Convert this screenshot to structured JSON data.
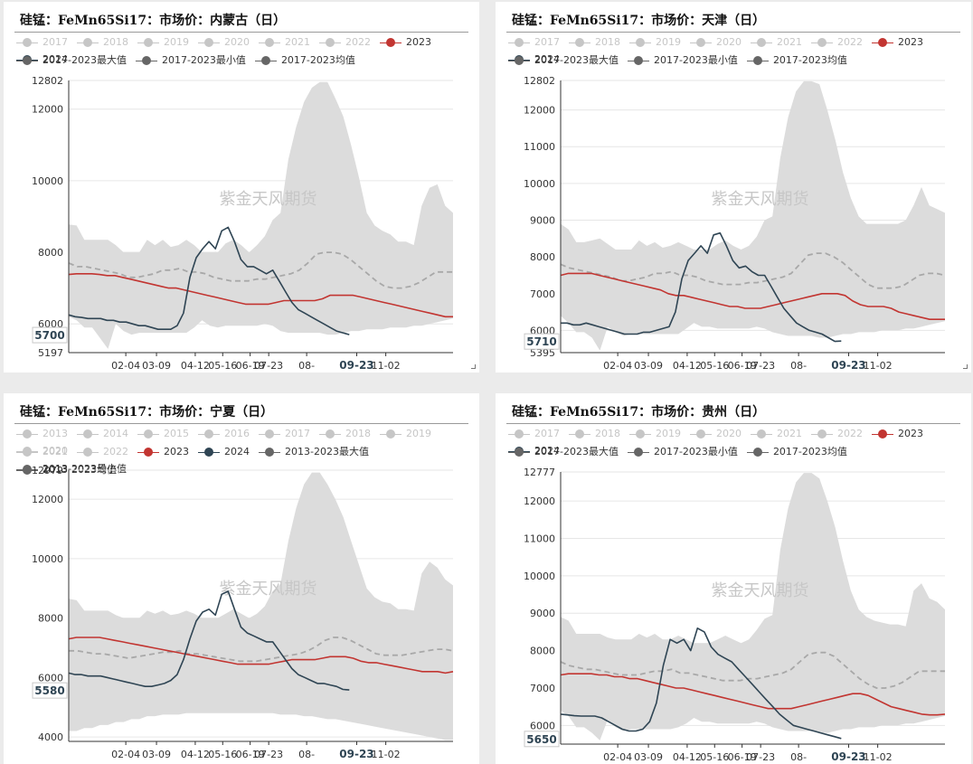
{
  "watermark": "紫金天风期货",
  "x_ticks": [
    "02-04",
    "03-09",
    "04-12",
    "05-16",
    "06-19",
    "07-23",
    "08-",
    "09-23",
    "11-02"
  ],
  "colors": {
    "c2023": "#c23531",
    "c2024": "#2f4554",
    "band": "#dcdcdc",
    "avg": "#a8a8a8",
    "legend_off": "#c6c6c6",
    "legend_on": "#666666"
  },
  "chart_data": [
    {
      "type": "line",
      "title": "硅锰：FeMn65Si17：市场价：内蒙古（日）",
      "legend": [
        [
          "2017",
          "2018",
          "2019",
          "2020",
          "2021",
          "2022",
          "2023",
          "2024"
        ],
        [
          "2017-2023最大值",
          "2017-2023最小值",
          "2017-2023均值"
        ]
      ],
      "y_ticks": [
        5197,
        6000,
        8000,
        10000,
        12000,
        12802
      ],
      "ylim": [
        5197,
        12802
      ],
      "current_label": "5700",
      "x_ticks": [
        "02-04",
        "03-09",
        "04-12",
        "05-16",
        "06-19",
        "07-23",
        "08-",
        "09-23",
        "11-02"
      ],
      "x_days": [
        0,
        35,
        73,
        121,
        155,
        189,
        212,
        259,
        321,
        357
      ],
      "band_max": [
        8780,
        8750,
        8350,
        8350,
        8350,
        8350,
        8200,
        8000,
        8000,
        8000,
        8350,
        8200,
        8350,
        8150,
        8200,
        8350,
        8200,
        8000,
        8000,
        8000,
        8250,
        8350,
        8200,
        8000,
        8200,
        8450,
        8900,
        9100,
        10600,
        11500,
        12200,
        12600,
        12760,
        12760,
        12300,
        11800,
        11000,
        10100,
        9100,
        8750,
        8600,
        8500,
        8300,
        8300,
        8200,
        9300,
        9800,
        9900,
        9300,
        9100
      ],
      "band_min": [
        6200,
        6100,
        5900,
        5900,
        5600,
        5300,
        6000,
        5800,
        5700,
        5750,
        5750,
        5750,
        5750,
        5750,
        5750,
        5750,
        5900,
        6100,
        5950,
        5900,
        5950,
        5950,
        5950,
        5950,
        5950,
        6000,
        5950,
        5800,
        5750,
        5750,
        5750,
        5750,
        5750,
        5700,
        5700,
        5750,
        5800,
        5800,
        5850,
        5850,
        5850,
        5900,
        5900,
        5900,
        5950,
        5950,
        6000,
        6050,
        6100,
        6150
      ],
      "avg": [
        7700,
        7600,
        7600,
        7550,
        7500,
        7450,
        7400,
        7300,
        7300,
        7350,
        7400,
        7500,
        7500,
        7550,
        7450,
        7450,
        7400,
        7300,
        7250,
        7200,
        7200,
        7200,
        7250,
        7250,
        7300,
        7350,
        7400,
        7500,
        7700,
        7950,
        8000,
        8000,
        7950,
        7800,
        7600,
        7400,
        7200,
        7050,
        7000,
        7000,
        7050,
        7150,
        7300,
        7450,
        7450,
        7450
      ],
      "series_2023": [
        7380,
        7400,
        7400,
        7400,
        7380,
        7350,
        7350,
        7300,
        7250,
        7200,
        7150,
        7100,
        7050,
        7000,
        7000,
        6950,
        6900,
        6850,
        6800,
        6750,
        6700,
        6650,
        6600,
        6550,
        6550,
        6550,
        6550,
        6600,
        6650,
        6650,
        6650,
        6650,
        6650,
        6700,
        6800,
        6800,
        6800,
        6800,
        6750,
        6700,
        6650,
        6600,
        6550,
        6500,
        6450,
        6400,
        6350,
        6300,
        6250,
        6200,
        6200
      ],
      "series_2024": [
        6250,
        6200,
        6180,
        6150,
        6150,
        6150,
        6100,
        6100,
        6050,
        6050,
        6000,
        5950,
        5950,
        5900,
        5850,
        5850,
        5850,
        5950,
        6300,
        7300,
        7850,
        8100,
        8300,
        8100,
        8600,
        8700,
        8300,
        7800,
        7600,
        7600,
        7500,
        7400,
        7500,
        7200,
        6900,
        6600,
        6400,
        6300,
        6200,
        6100,
        6000,
        5900,
        5800,
        5750,
        5700
      ]
    },
    {
      "type": "line",
      "title": "硅锰：FeMn65Si17：市场价：天津（日）",
      "legend": [
        [
          "2017",
          "2018",
          "2019",
          "2020",
          "2021",
          "2022",
          "2023",
          "2024"
        ],
        [
          "2017-2023最大值",
          "2017-2023最小值",
          "2017-2023均值"
        ]
      ],
      "y_ticks": [
        5395,
        6000,
        7000,
        8000,
        9000,
        10000,
        11000,
        12000,
        12802
      ],
      "ylim": [
        5395,
        12802
      ],
      "current_label": "5710",
      "x_ticks": [
        "02-04",
        "03-09",
        "04-12",
        "05-16",
        "06-19",
        "07-23",
        "08-",
        "09-23",
        "11-02"
      ],
      "x_days": [
        0,
        35,
        73,
        121,
        155,
        189,
        212,
        259,
        321,
        357
      ],
      "band_max": [
        8900,
        8750,
        8400,
        8400,
        8450,
        8500,
        8350,
        8200,
        8200,
        8200,
        8450,
        8300,
        8400,
        8250,
        8300,
        8400,
        8300,
        8200,
        8200,
        8200,
        8350,
        8450,
        8300,
        8200,
        8300,
        8550,
        9000,
        9100,
        10700,
        11800,
        12500,
        12780,
        12780,
        12700,
        12000,
        11200,
        10300,
        9600,
        9100,
        8900,
        8900,
        8900,
        8900,
        8900,
        9000,
        9400,
        9900,
        9400,
        9300,
        9200
      ],
      "band_min": [
        6400,
        6200,
        5950,
        5950,
        5800,
        5450,
        6100,
        5950,
        5850,
        5900,
        5900,
        5900,
        5900,
        5900,
        5900,
        5900,
        6050,
        6200,
        6100,
        6100,
        6050,
        6050,
        6050,
        6050,
        6050,
        6100,
        6050,
        5950,
        5900,
        5850,
        5850,
        5850,
        5850,
        5800,
        5800,
        5850,
        5900,
        5900,
        5950,
        5950,
        5950,
        6000,
        6000,
        6000,
        6050,
        6050,
        6100,
        6150,
        6200,
        6250
      ],
      "avg": [
        7800,
        7700,
        7650,
        7600,
        7550,
        7500,
        7450,
        7350,
        7350,
        7400,
        7450,
        7550,
        7550,
        7600,
        7500,
        7500,
        7450,
        7350,
        7300,
        7250,
        7250,
        7250,
        7300,
        7300,
        7350,
        7400,
        7450,
        7550,
        7800,
        8050,
        8100,
        8100,
        8000,
        7850,
        7650,
        7450,
        7250,
        7150,
        7150,
        7150,
        7200,
        7350,
        7500,
        7550,
        7550,
        7500
      ],
      "series_2023": [
        7500,
        7550,
        7550,
        7550,
        7550,
        7500,
        7450,
        7400,
        7350,
        7300,
        7250,
        7200,
        7150,
        7100,
        7000,
        6950,
        6950,
        6900,
        6850,
        6800,
        6750,
        6700,
        6650,
        6650,
        6600,
        6600,
        6600,
        6650,
        6700,
        6750,
        6800,
        6850,
        6900,
        6950,
        7000,
        7000,
        7000,
        6950,
        6800,
        6700,
        6650,
        6650,
        6650,
        6600,
        6500,
        6450,
        6400,
        6350,
        6300,
        6300,
        6300
      ],
      "series_2024": [
        6200,
        6200,
        6150,
        6150,
        6200,
        6150,
        6100,
        6050,
        6000,
        5950,
        5900,
        5900,
        5900,
        5950,
        5950,
        6000,
        6050,
        6100,
        6500,
        7400,
        7900,
        8100,
        8300,
        8100,
        8600,
        8650,
        8300,
        7900,
        7700,
        7750,
        7600,
        7500,
        7500,
        7200,
        6900,
        6600,
        6400,
        6200,
        6100,
        6000,
        5950,
        5900,
        5800,
        5700,
        5710
      ]
    },
    {
      "type": "line",
      "title": "硅锰：FeMn65Si17：市场价：宁夏（日）",
      "legend": [
        [
          "2013",
          "2014",
          "2015",
          "2016",
          "2017",
          "2018",
          "2019",
          "2020"
        ],
        [
          "2021",
          "2022",
          "2023",
          "2024",
          "2013-2023最大值",
          "2013-2023最小值"
        ],
        [
          "2013-2023均值"
        ]
      ],
      "y_ticks": [
        4000,
        6000,
        8000,
        10000,
        12000,
        12979
      ],
      "ylim": [
        3850,
        12979
      ],
      "current_label": "5580",
      "x_ticks": [
        "02-04",
        "03-09",
        "04-12",
        "05-16",
        "06-19",
        "07-23",
        "08-",
        "09-23",
        "11-02"
      ],
      "x_days": [
        0,
        35,
        73,
        121,
        155,
        189,
        212,
        259,
        321,
        357
      ],
      "band_max": [
        8650,
        8600,
        8250,
        8250,
        8250,
        8250,
        8100,
        8000,
        8000,
        8000,
        8250,
        8150,
        8250,
        8100,
        8150,
        8250,
        8150,
        8000,
        8000,
        8000,
        8150,
        8300,
        8150,
        8000,
        8150,
        8400,
        8900,
        9150,
        10600,
        11700,
        12500,
        12900,
        12900,
        12500,
        12000,
        11400,
        10600,
        9800,
        9000,
        8700,
        8550,
        8500,
        8300,
        8300,
        8250,
        9500,
        9900,
        9700,
        9300,
        9100
      ],
      "band_min": [
        4200,
        4200,
        4300,
        4300,
        4400,
        4400,
        4500,
        4500,
        4600,
        4600,
        4700,
        4700,
        4750,
        4750,
        4750,
        4800,
        4800,
        4800,
        4800,
        4800,
        4800,
        4800,
        4800,
        4800,
        4800,
        4800,
        4800,
        4750,
        4750,
        4750,
        4700,
        4700,
        4650,
        4600,
        4600,
        4550,
        4500,
        4450,
        4400,
        4350,
        4300,
        4250,
        4200,
        4150,
        4100,
        4050,
        4000,
        3950,
        3900,
        3900
      ],
      "avg": [
        6900,
        6900,
        6850,
        6800,
        6800,
        6750,
        6700,
        6650,
        6700,
        6750,
        6800,
        6850,
        6850,
        6900,
        6800,
        6800,
        6750,
        6700,
        6650,
        6600,
        6550,
        6550,
        6550,
        6600,
        6650,
        6700,
        6750,
        6800,
        6900,
        7050,
        7250,
        7350,
        7350,
        7250,
        7100,
        6950,
        6800,
        6750,
        6750,
        6750,
        6800,
        6850,
        6900,
        6950,
        6950,
        6900
      ],
      "series_2023": [
        7300,
        7350,
        7350,
        7350,
        7350,
        7300,
        7250,
        7200,
        7150,
        7100,
        7050,
        7000,
        6950,
        6900,
        6850,
        6800,
        6750,
        6700,
        6650,
        6600,
        6550,
        6500,
        6450,
        6450,
        6450,
        6450,
        6450,
        6500,
        6550,
        6600,
        6600,
        6600,
        6600,
        6650,
        6700,
        6700,
        6700,
        6650,
        6550,
        6500,
        6500,
        6450,
        6400,
        6350,
        6300,
        6250,
        6200,
        6200,
        6200,
        6150,
        6200
      ],
      "series_2024": [
        6150,
        6100,
        6100,
        6050,
        6050,
        6050,
        6000,
        5950,
        5900,
        5850,
        5800,
        5750,
        5700,
        5700,
        5750,
        5800,
        5900,
        6100,
        6600,
        7300,
        7900,
        8200,
        8300,
        8100,
        8800,
        8900,
        8300,
        7700,
        7500,
        7400,
        7300,
        7200,
        7200,
        6900,
        6600,
        6300,
        6100,
        6000,
        5900,
        5800,
        5800,
        5750,
        5700,
        5600,
        5580
      ]
    },
    {
      "type": "line",
      "title": "硅锰：FeMn65Si17：市场价：贵州（日）",
      "legend": [
        [
          "2017",
          "2018",
          "2019",
          "2020",
          "2021",
          "2022",
          "2023",
          "2024"
        ],
        [
          "2017-2023最大值",
          "2017-2023最小值",
          "2017-2023均值"
        ]
      ],
      "y_ticks": [
        6000,
        7000,
        8000,
        9000,
        10000,
        11000,
        12000,
        12777
      ],
      "ylim": [
        5500,
        12777
      ],
      "current_label": "5650",
      "x_ticks": [
        "02-04",
        "03-09",
        "04-12",
        "05-16",
        "06-19",
        "07-23",
        "08-",
        "09-23",
        "11-02"
      ],
      "x_days": [
        0,
        35,
        73,
        121,
        155,
        189,
        212,
        259,
        321,
        357
      ],
      "band_max": [
        8900,
        8800,
        8450,
        8450,
        8450,
        8450,
        8350,
        8300,
        8300,
        8300,
        8450,
        8350,
        8450,
        8300,
        8300,
        8400,
        8300,
        8200,
        8200,
        8200,
        8300,
        8400,
        8300,
        8200,
        8300,
        8550,
        8850,
        8950,
        10700,
        11800,
        12500,
        12750,
        12750,
        12600,
        12000,
        11300,
        10400,
        9600,
        9100,
        8900,
        8800,
        8750,
        8700,
        8700,
        8650,
        9600,
        9800,
        9400,
        9300,
        9100
      ],
      "band_min": [
        6400,
        6250,
        5950,
        5950,
        5800,
        5600,
        6150,
        5950,
        5850,
        5900,
        5900,
        5900,
        5900,
        5900,
        5900,
        5950,
        6050,
        6200,
        6100,
        6100,
        6050,
        6050,
        6050,
        6050,
        6050,
        6100,
        6050,
        5950,
        5900,
        5850,
        5850,
        5850,
        5850,
        5800,
        5800,
        5850,
        5900,
        5900,
        5950,
        5950,
        5950,
        6000,
        6000,
        6000,
        6050,
        6050,
        6100,
        6150,
        6200,
        6250
      ],
      "avg": [
        7700,
        7600,
        7550,
        7500,
        7500,
        7450,
        7400,
        7350,
        7350,
        7350,
        7400,
        7450,
        7450,
        7500,
        7400,
        7400,
        7350,
        7300,
        7250,
        7200,
        7200,
        7200,
        7250,
        7250,
        7300,
        7350,
        7400,
        7500,
        7700,
        7900,
        7950,
        7950,
        7850,
        7650,
        7450,
        7250,
        7100,
        7000,
        7000,
        7050,
        7150,
        7300,
        7450,
        7450,
        7450,
        7450
      ],
      "series_2023": [
        7350,
        7380,
        7380,
        7380,
        7380,
        7350,
        7350,
        7300,
        7300,
        7250,
        7250,
        7200,
        7150,
        7100,
        7050,
        7000,
        7000,
        6950,
        6900,
        6850,
        6800,
        6750,
        6700,
        6650,
        6600,
        6550,
        6500,
        6450,
        6450,
        6450,
        6450,
        6500,
        6550,
        6600,
        6650,
        6700,
        6750,
        6800,
        6850,
        6850,
        6800,
        6700,
        6600,
        6500,
        6450,
        6400,
        6350,
        6300,
        6280,
        6280,
        6300
      ],
      "series_2024": [
        6300,
        6280,
        6260,
        6250,
        6250,
        6250,
        6200,
        6100,
        6000,
        5900,
        5850,
        5850,
        5900,
        6100,
        6600,
        7600,
        8300,
        8200,
        8300,
        8000,
        8600,
        8500,
        8100,
        7900,
        7800,
        7700,
        7500,
        7300,
        7100,
        6900,
        6700,
        6500,
        6300,
        6150,
        6000,
        5950,
        5900,
        5850,
        5800,
        5750,
        5700,
        5650
      ]
    }
  ]
}
